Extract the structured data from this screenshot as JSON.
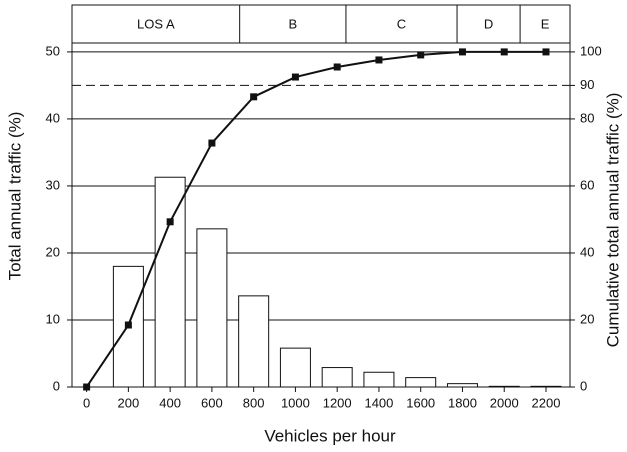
{
  "chart_data": {
    "type": "bar",
    "x_label": "Vehicles per hour",
    "y_label": "Total annual traffic (%)",
    "y2_label": "Cumulative total annual traffic (%)",
    "xlim": [
      -70,
      2315
    ],
    "xticks": [
      0,
      200,
      400,
      600,
      800,
      1000,
      1200,
      1400,
      1600,
      1800,
      2000,
      2200
    ],
    "ylim": [
      0,
      57
    ],
    "yticks": [
      0,
      10,
      20,
      30,
      40,
      50
    ],
    "y2lim": [
      0,
      114
    ],
    "y2ticks": [
      0,
      20,
      40,
      60,
      80,
      90,
      100
    ],
    "grid": true,
    "reference_lines": [
      {
        "axis": "y2",
        "value": 90,
        "style": "dashed"
      }
    ],
    "los_bands": [
      {
        "label": "LOS A",
        "from": -70,
        "to": 733
      },
      {
        "label": "B",
        "from": 733,
        "to": 1242
      },
      {
        "label": "C",
        "from": 1242,
        "to": 1774
      },
      {
        "label": "D",
        "from": 1774,
        "to": 2076
      },
      {
        "label": "E",
        "from": 2076,
        "to": 2315
      }
    ],
    "series": [
      {
        "type": "bar",
        "color": "#ffffff",
        "x": [
          200,
          400,
          600,
          800,
          1000,
          1200,
          1400,
          1600,
          1800,
          2000,
          2200
        ],
        "values": [
          18,
          31.3,
          23.6,
          13.6,
          5.8,
          2.9,
          2.2,
          1.4,
          0.5,
          0.1,
          0.1
        ]
      },
      {
        "type": "line",
        "axis": "y2",
        "color": "#111111",
        "x": [
          0,
          200,
          400,
          600,
          800,
          1000,
          1200,
          1400,
          1600,
          1800,
          2000,
          2200
        ],
        "values": [
          0,
          18.5,
          49.3,
          72.8,
          86.6,
          92.5,
          95.5,
          97.6,
          99.1,
          100,
          100,
          100
        ]
      }
    ]
  }
}
